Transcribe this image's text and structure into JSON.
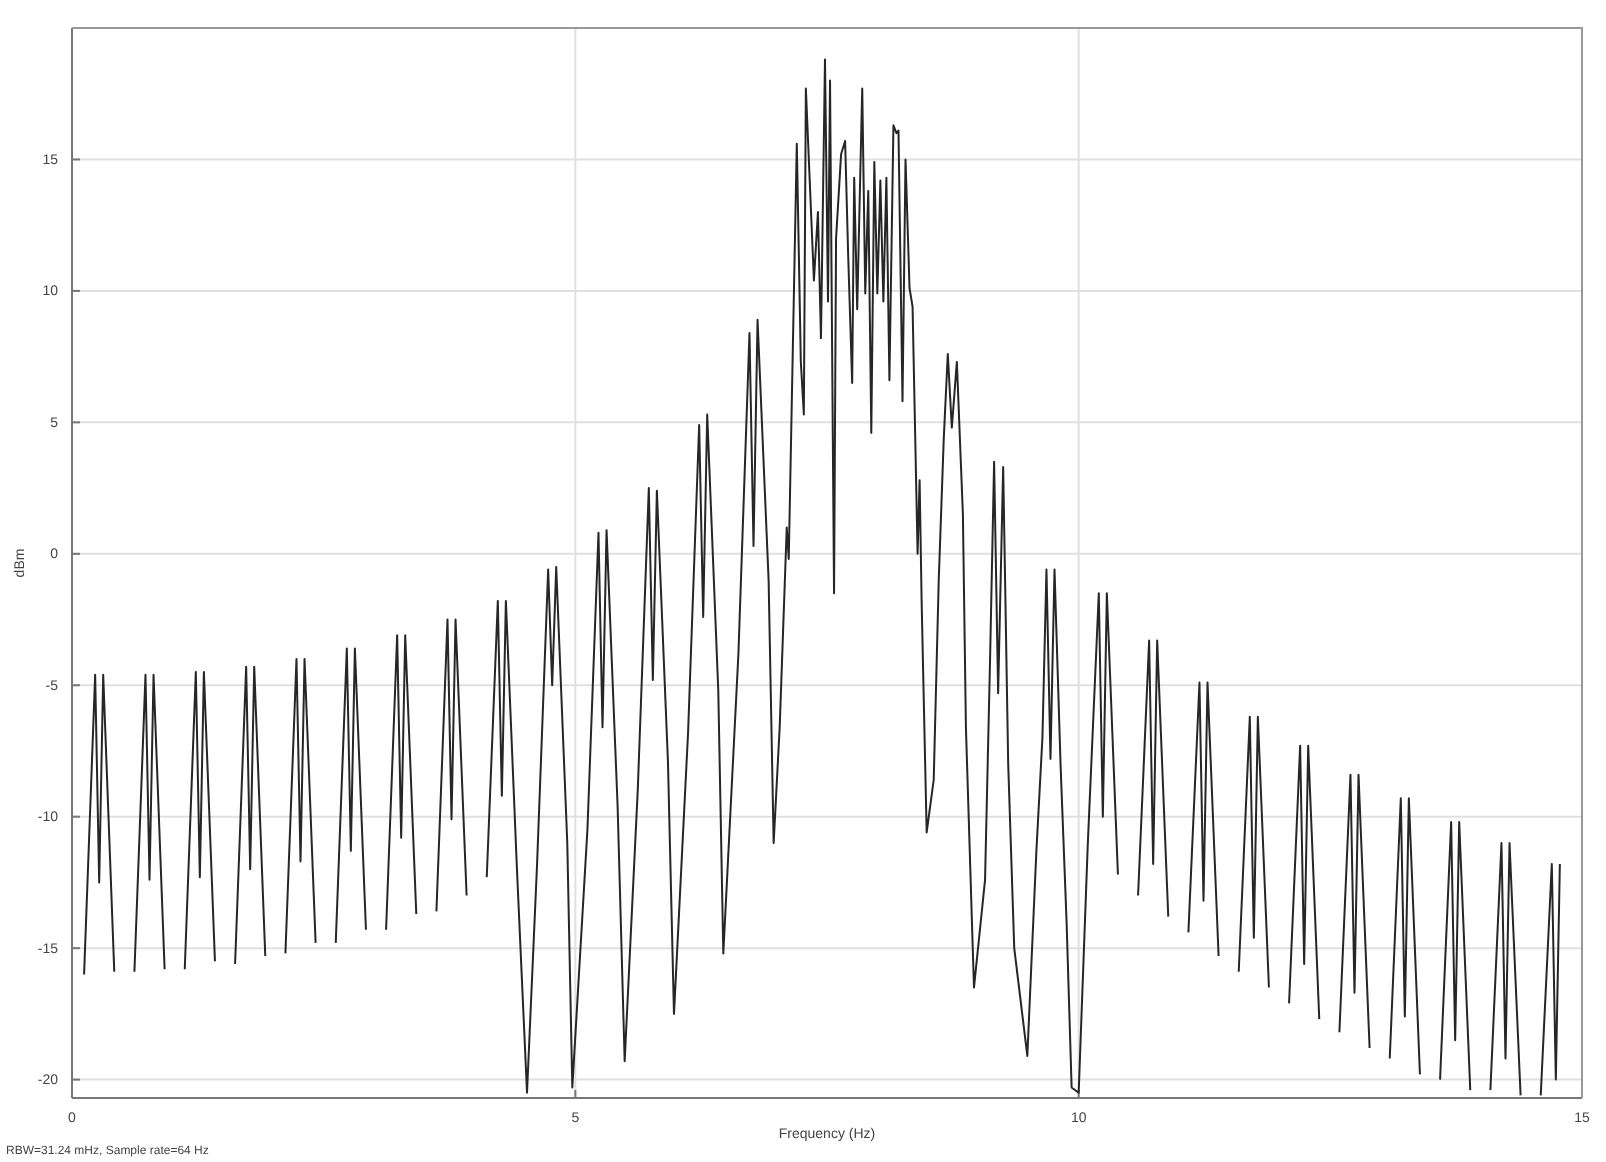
{
  "chart_data": {
    "type": "line",
    "xlabel": "Frequency (Hz)",
    "ylabel": "dBm",
    "color": "#262626",
    "grid": true,
    "xlim": [
      0,
      15
    ],
    "ylim": [
      -20.7,
      20
    ],
    "xticks": [
      0,
      5,
      10,
      15
    ],
    "yticks": [
      -20,
      -15,
      -10,
      -5,
      0,
      5,
      10,
      15
    ],
    "annotations": [
      "RBW=31.24 mHz, Sample rate=64 Hz"
    ],
    "x": [
      0.12,
      0.23,
      0.27,
      0.31,
      0.42,
      0.46,
      0.58,
      0.62,
      0.73,
      0.77,
      0.81,
      0.92,
      0.96,
      1.08,
      1.12,
      1.23,
      1.27,
      1.31,
      1.42,
      1.46,
      1.58,
      1.62,
      1.73,
      1.77,
      1.81,
      1.92,
      1.96,
      2.08,
      2.12,
      2.23,
      2.27,
      2.31,
      2.42,
      2.46,
      2.58,
      2.62,
      2.73,
      2.77,
      2.81,
      2.92,
      2.96,
      3.08,
      3.12,
      3.23,
      3.27,
      3.31,
      3.42,
      3.46,
      3.58,
      3.62,
      3.73,
      3.77,
      3.81,
      3.92,
      3.96,
      4.08,
      4.12,
      4.23,
      4.27,
      4.31,
      4.42,
      4.52,
      4.62,
      4.73,
      4.77,
      4.81,
      4.92,
      4.97,
      5.12,
      5.23,
      5.27,
      5.31,
      5.42,
      5.49,
      5.62,
      5.73,
      5.77,
      5.81,
      5.92,
      5.98,
      6.12,
      6.23,
      6.27,
      6.31,
      6.42,
      6.47,
      6.62,
      6.73,
      6.77,
      6.81,
      6.92,
      6.97,
      7.03,
      7.1,
      7.12,
      7.2,
      7.24,
      7.27,
      7.29,
      7.37,
      7.41,
      7.44,
      7.48,
      7.51,
      7.53,
      7.57,
      7.59,
      7.64,
      7.68,
      7.71,
      7.75,
      7.77,
      7.8,
      7.85,
      7.88,
      7.91,
      7.94,
      7.97,
      8,
      8.03,
      8.06,
      8.09,
      8.12,
      8.16,
      8.19,
      8.21,
      8.25,
      8.28,
      8.32,
      8.35,
      8.4,
      8.42,
      8.44,
      8.49,
      8.56,
      8.61,
      8.66,
      8.7,
      8.74,
      8.79,
      8.85,
      8.88,
      8.96,
      9.07,
      9.12,
      9.16,
      9.2,
      9.25,
      9.3,
      9.36,
      9.49,
      9.58,
      9.64,
      9.68,
      9.72,
      9.76,
      9.82,
      9.88,
      9.93,
      10,
      10.09,
      10.2,
      10.24,
      10.28,
      10.39,
      10.43,
      10.55,
      10.59,
      10.7,
      10.74,
      10.78,
      10.89,
      10.93,
      11.05,
      11.09,
      11.2,
      11.24,
      11.28,
      11.39,
      11.43,
      11.55,
      11.59,
      11.7,
      11.74,
      11.78,
      11.89,
      11.93,
      12.05,
      12.09,
      12.2,
      12.24,
      12.28,
      12.39,
      12.43,
      12.55,
      12.59,
      12.7,
      12.74,
      12.78,
      12.89,
      12.93,
      13.05,
      13.09,
      13.2,
      13.24,
      13.28,
      13.39,
      13.43,
      13.55,
      13.59,
      13.7,
      13.74,
      13.78,
      13.89,
      13.93,
      14.05,
      14.09,
      14.2,
      14.24,
      14.28,
      14.39,
      14.43,
      14.55,
      14.59,
      14.7,
      14.74,
      14.78
    ],
    "values": [
      -16.0,
      -4.6,
      -12.5,
      -4.6,
      -15.9,
      null,
      null,
      -15.9,
      -4.6,
      -12.4,
      -4.6,
      -15.8,
      null,
      null,
      -15.8,
      -4.5,
      -12.3,
      -4.5,
      -15.5,
      null,
      null,
      -15.6,
      -4.3,
      -12.0,
      -4.3,
      -15.3,
      null,
      null,
      -15.2,
      -4.0,
      -11.7,
      -4.0,
      -14.8,
      null,
      null,
      -14.8,
      -3.6,
      -11.3,
      -3.6,
      -14.3,
      null,
      null,
      -14.3,
      -3.1,
      -10.8,
      -3.1,
      -13.7,
      null,
      null,
      -13.6,
      -2.5,
      -10.1,
      -2.5,
      -13.0,
      null,
      null,
      -12.3,
      -1.8,
      -9.2,
      -1.8,
      -12.0,
      -20.5,
      -11.8,
      -0.6,
      -5.0,
      -0.5,
      -11.0,
      -20.3,
      -10.5,
      0.8,
      -6.6,
      0.9,
      -9.6,
      -19.3,
      -9.0,
      2.5,
      -4.8,
      2.4,
      -7.9,
      -17.5,
      -6.8,
      4.9,
      -2.4,
      5.3,
      -5.2,
      -15.2,
      -3.8,
      8.4,
      0.3,
      8.9,
      -1.0,
      -11.0,
      -6.6,
      1.0,
      -0.2,
      15.6,
      7.3,
      5.3,
      17.7,
      10.4,
      13.0,
      8.2,
      18.8,
      9.6,
      18.0,
      -1.5,
      12.0,
      15.2,
      15.7,
      11.4,
      6.5,
      14.3,
      9.3,
      17.7,
      9.9,
      13.8,
      4.6,
      14.9,
      9.9,
      14.2,
      9.6,
      14.3,
      6.6,
      16.3,
      16.0,
      16.1,
      5.8,
      15.0,
      10.1,
      9.4,
      0.0,
      2.8,
      -1.8,
      -10.6,
      -8.6,
      -1.0,
      4.4,
      7.6,
      4.8,
      7.3,
      1.5,
      -6.6,
      -16.5,
      -12.4,
      -4.0,
      3.5,
      -5.3,
      3.3,
      -8.0,
      -15.0,
      -19.1,
      -11.3,
      -7.0,
      -0.6,
      -7.8,
      -0.6,
      -8.0,
      -14.0,
      -20.3,
      -20.5,
      -11.1,
      -1.5,
      -10.0,
      -1.5,
      -12.2,
      null,
      null,
      -13.0,
      -3.3,
      -11.8,
      -3.3,
      -13.8,
      null,
      null,
      -14.4,
      -4.9,
      -13.2,
      -4.9,
      -15.3,
      null,
      null,
      -15.9,
      -6.2,
      -14.6,
      -6.2,
      -16.5,
      null,
      null,
      -17.1,
      -7.3,
      -15.6,
      -7.3,
      -17.7,
      null,
      null,
      -18.2,
      -8.4,
      -16.7,
      -8.4,
      -18.8,
      null,
      null,
      -19.2,
      -9.3,
      -17.6,
      -9.3,
      -19.8,
      null,
      null,
      -20.0,
      -10.2,
      -18.5,
      -10.2,
      -20.4,
      null,
      null,
      -20.4,
      -11.0,
      -19.2,
      -11.0,
      -20.6,
      null,
      null,
      -20.6,
      -11.8,
      -20.0,
      -11.8
    ]
  }
}
